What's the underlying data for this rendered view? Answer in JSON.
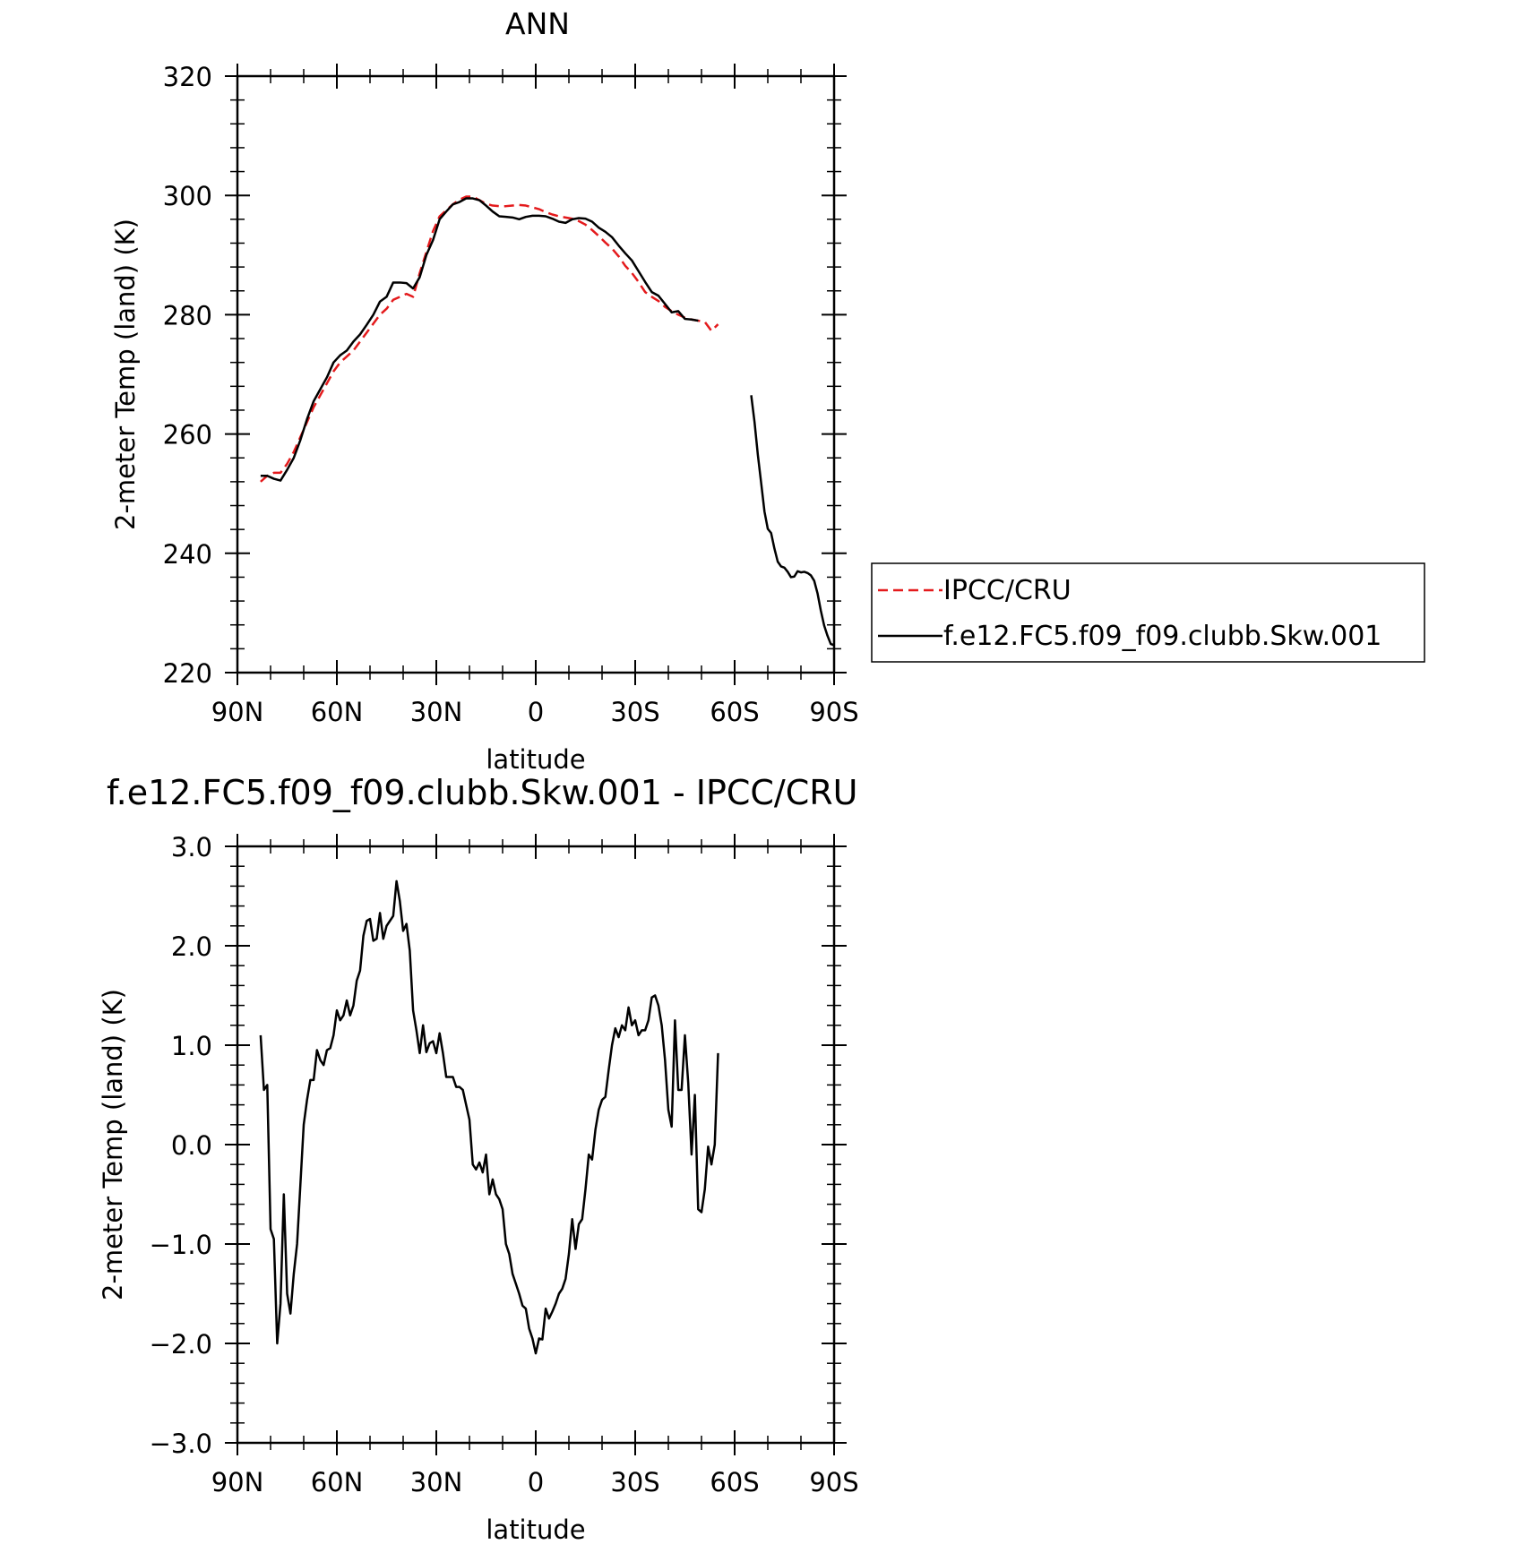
{
  "chart_data": [
    {
      "type": "line",
      "title": "ANN",
      "xlabel": "latitude",
      "ylabel": "2-meter Temp (land) (K)",
      "xlim": [
        90,
        -90
      ],
      "ylim": [
        220,
        320
      ],
      "xticks": [
        90,
        60,
        30,
        0,
        -30,
        -60,
        -90
      ],
      "xtick_labels": [
        "90N",
        "60N",
        "30N",
        "0",
        "30S",
        "60S",
        "90S"
      ],
      "yticks": [
        220,
        240,
        260,
        280,
        300,
        320
      ],
      "ytick_labels": [
        "220",
        "240",
        "260",
        "280",
        "300",
        "320"
      ],
      "legend_position": "right",
      "series": [
        {
          "name": "IPCC/CRU",
          "color": "#e41a1c",
          "dash": "dashed",
          "x": [
            83,
            81,
            79,
            77,
            75,
            73,
            71,
            69,
            67,
            65,
            63,
            61,
            59,
            57,
            55,
            53,
            51,
            49,
            47,
            45,
            43,
            41,
            39,
            37,
            35,
            33,
            31,
            29,
            27,
            25,
            23,
            21,
            19,
            17,
            15,
            13,
            11,
            9,
            7,
            5,
            3,
            1,
            -1,
            -3,
            -5,
            -7,
            -9,
            -11,
            -13,
            -15,
            -17,
            -19,
            -21,
            -23,
            -25,
            -27,
            -29,
            -31,
            -33,
            -35,
            -37,
            -39,
            -41,
            -43,
            -45,
            -47,
            -49,
            -51,
            -53,
            -55
          ],
          "y": [
            252,
            253,
            253.5,
            253.5,
            255,
            257,
            259.5,
            262,
            264.5,
            266.5,
            268.5,
            270.5,
            272,
            273,
            274,
            275.5,
            277,
            278.5,
            280,
            281,
            282.5,
            283,
            283.5,
            283,
            287,
            290.5,
            294,
            296.5,
            297.5,
            298.5,
            299.3,
            299.8,
            299.8,
            299.2,
            298.6,
            298.3,
            298.2,
            298.2,
            298.3,
            298.4,
            298.3,
            298,
            297.7,
            297.2,
            296.8,
            296.5,
            296.3,
            296.1,
            295.7,
            295.1,
            294.2,
            293.2,
            292.1,
            291.1,
            289.8,
            288.2,
            287,
            285.5,
            283.8,
            283,
            282.3,
            281.3,
            280.6,
            280,
            279.5,
            279.2,
            279,
            278.8,
            277.3,
            278.4
          ]
        },
        {
          "name": "f.e12.FC5.f09_f09.clubb.Skw.001",
          "color": "#000000",
          "dash": "solid",
          "x": [
            83,
            81,
            79,
            77,
            75,
            73,
            71,
            69,
            67,
            65,
            63,
            61,
            59,
            57,
            55,
            53,
            51,
            49,
            47,
            45,
            43,
            41,
            39,
            37,
            35,
            33,
            31,
            29,
            27,
            25,
            23,
            21,
            19,
            17,
            15,
            13,
            11,
            9,
            7,
            5,
            3,
            1,
            -1,
            -3,
            -5,
            -7,
            -9,
            -11,
            -13,
            -15,
            -17,
            -19,
            -21,
            -23,
            -25,
            -27,
            -29,
            -31,
            -33,
            -35,
            -37,
            -39,
            -41,
            -43,
            -45,
            -47,
            -49,
            -51,
            -53,
            -55
          ],
          "y": [
            253,
            253,
            252.5,
            252.2,
            254,
            256,
            259,
            262.5,
            265.5,
            267.5,
            269.5,
            272,
            273.2,
            274,
            275.5,
            276.7,
            278.3,
            280,
            282.2,
            283,
            285.4,
            285.4,
            285.3,
            284.4,
            286.3,
            290,
            292.5,
            296,
            297.3,
            298.5,
            298.9,
            299.5,
            299.5,
            299.2,
            298.3,
            297.3,
            296.5,
            296.4,
            296.3,
            296,
            296.4,
            296.6,
            296.6,
            296.5,
            296.1,
            295.6,
            295.4,
            296,
            296.2,
            296.1,
            295.6,
            294.6,
            293.9,
            293,
            291.6,
            290.3,
            289.1,
            287.3,
            285.5,
            283.8,
            283.2,
            281.8,
            280.4,
            280.6,
            279.3,
            279.2,
            279,
            null,
            null,
            null
          ]
        },
        {
          "name": "",
          "color": "#000000",
          "dash": "solid",
          "x": [
            -65,
            -66,
            -67,
            -68,
            -69,
            -70,
            -71,
            -72,
            -73,
            -74,
            -75,
            -76,
            -77,
            -78,
            -79,
            -80,
            -81,
            -82,
            -83,
            -84,
            -85,
            -86,
            -87,
            -88,
            -89,
            -90
          ],
          "y": [
            266.5,
            262,
            256.5,
            251.8,
            247,
            244.1,
            243.4,
            240.8,
            238.6,
            237.8,
            237.6,
            236.9,
            236,
            236.1,
            237,
            236.8,
            236.9,
            236.7,
            236.3,
            235.4,
            233.3,
            230.4,
            227.9,
            226.2,
            224.8,
            224.6
          ]
        }
      ]
    },
    {
      "type": "line",
      "title": "f.e12.FC5.f09_f09.clubb.Skw.001 - IPCC/CRU",
      "xlabel": "latitude",
      "ylabel": "2-meter Temp (land) (K)",
      "xlim": [
        90,
        -90
      ],
      "ylim": [
        -3.0,
        3.0
      ],
      "xticks": [
        90,
        60,
        30,
        0,
        -30,
        -60,
        -90
      ],
      "xtick_labels": [
        "90N",
        "60N",
        "30N",
        "0",
        "30S",
        "60S",
        "90S"
      ],
      "yticks": [
        -3,
        -2,
        -1,
        0,
        1,
        2,
        3
      ],
      "ytick_labels": [
        "−3.0",
        "−2.0",
        "−1.0",
        "0.0",
        "1.0",
        "2.0",
        "3.0"
      ],
      "series": [
        {
          "name": "",
          "color": "#000000",
          "dash": "solid",
          "x": [
            83,
            82,
            81,
            80,
            79,
            78,
            77,
            76,
            75,
            74,
            73,
            72,
            71,
            70,
            69,
            68,
            67,
            66,
            65,
            64,
            63,
            62,
            61,
            60,
            59,
            58,
            57,
            56,
            55,
            54,
            53,
            52,
            51,
            50,
            49,
            48,
            47,
            46,
            45,
            44,
            43,
            42,
            41,
            40,
            39,
            38,
            37,
            36,
            35,
            34,
            33,
            32,
            31,
            30,
            29,
            28,
            27,
            26,
            25,
            24,
            23,
            22,
            21,
            20,
            19,
            18,
            17,
            16,
            15,
            14,
            13,
            12,
            11,
            10,
            9,
            8,
            7,
            6,
            5,
            4,
            3,
            2,
            1,
            0,
            -1,
            -2,
            -3,
            -4,
            -5,
            -6,
            -7,
            -8,
            -9,
            -10,
            -11,
            -12,
            -13,
            -14,
            -15,
            -16,
            -17,
            -18,
            -19,
            -20,
            -21,
            -22,
            -23,
            -24,
            -25,
            -26,
            -27,
            -28,
            -29,
            -30,
            -31,
            -32,
            -33,
            -34,
            -35,
            -36,
            -37,
            -38,
            -39,
            -40,
            -41,
            -42,
            -43,
            -44,
            -45,
            -46,
            -47,
            -48,
            -49,
            -50,
            -51,
            -52,
            -53,
            -54,
            -55
          ],
          "y": [
            1.1,
            0.55,
            0.6,
            -0.85,
            -0.95,
            -2.0,
            -1.6,
            -0.5,
            -1.5,
            -1.7,
            -1.3,
            -1.0,
            -0.4,
            0.2,
            0.45,
            0.65,
            0.65,
            0.95,
            0.85,
            0.8,
            0.95,
            0.97,
            1.1,
            1.35,
            1.25,
            1.3,
            1.45,
            1.3,
            1.4,
            1.65,
            1.75,
            2.1,
            2.25,
            2.27,
            2.05,
            2.07,
            2.33,
            2.07,
            2.2,
            2.25,
            2.3,
            2.65,
            2.45,
            2.15,
            2.22,
            1.95,
            1.35,
            1.15,
            0.92,
            1.2,
            0.93,
            1.02,
            1.04,
            0.92,
            1.12,
            0.92,
            0.68,
            0.68,
            0.68,
            0.58,
            0.58,
            0.55,
            0.4,
            0.25,
            -0.2,
            -0.25,
            -0.18,
            -0.28,
            -0.1,
            -0.5,
            -0.35,
            -0.5,
            -0.55,
            -0.65,
            -1.0,
            -1.1,
            -1.3,
            -1.4,
            -1.5,
            -1.62,
            -1.65,
            -1.85,
            -1.95,
            -2.1,
            -1.95,
            -1.96,
            -1.65,
            -1.75,
            -1.68,
            -1.6,
            -1.5,
            -1.45,
            -1.35,
            -1.1,
            -0.75,
            -1.05,
            -0.8,
            -0.75,
            -0.45,
            -0.1,
            -0.15,
            0.15,
            0.35,
            0.45,
            0.48,
            0.75,
            1.0,
            1.17,
            1.08,
            1.2,
            1.15,
            1.38,
            1.2,
            1.25,
            1.1,
            1.15,
            1.15,
            1.25,
            1.48,
            1.5,
            1.4,
            1.2,
            0.85,
            0.35,
            0.18,
            1.25,
            0.55,
            0.55,
            1.1,
            0.62,
            -0.1,
            0.5,
            -0.65,
            -0.68,
            -0.45,
            -0.02,
            -0.2,
            0.0,
            0.92
          ]
        }
      ]
    }
  ]
}
